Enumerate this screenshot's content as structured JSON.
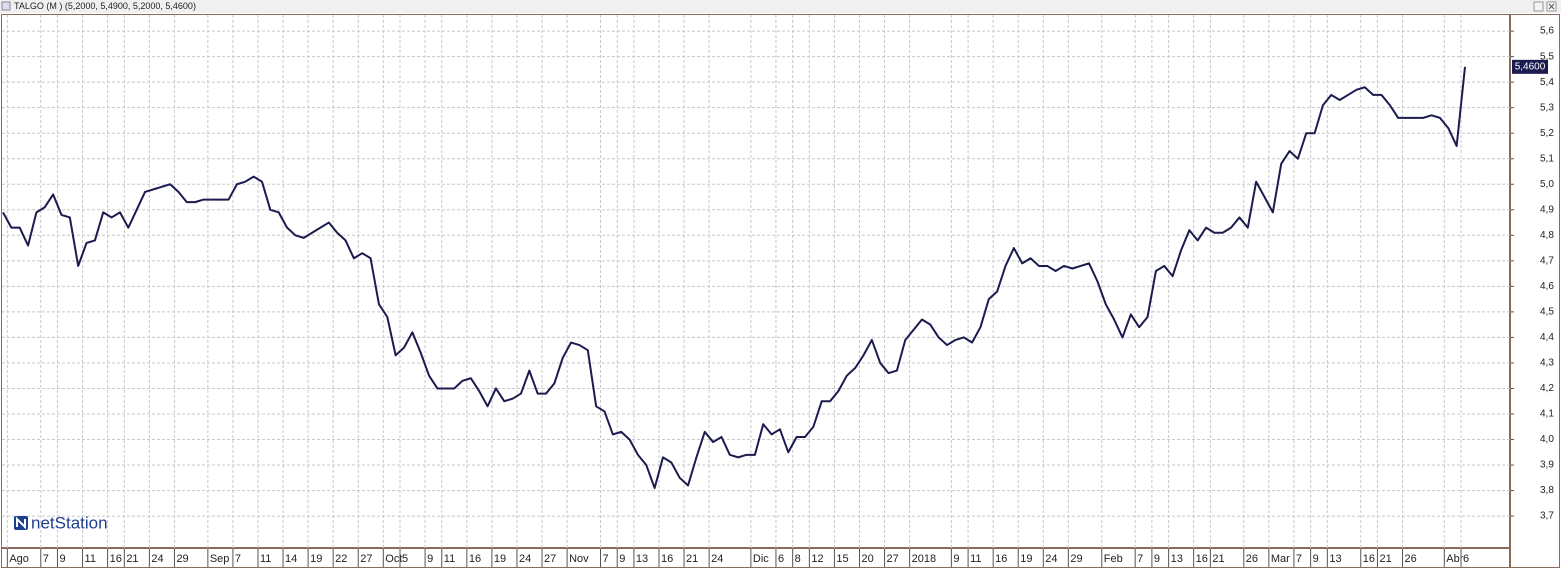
{
  "chart_data": {
    "type": "line",
    "title": "TALGO (M ) (5,2000, 5,4900, 5,2000, 5,4600)",
    "logo": "netStation",
    "categories": [
      null,
      "Ago",
      null,
      null,
      null,
      "7",
      null,
      "9",
      null,
      null,
      "11",
      null,
      null,
      "16",
      null,
      "21",
      null,
      null,
      "24",
      null,
      null,
      "29",
      null,
      null,
      null,
      "Sep",
      null,
      null,
      "7",
      null,
      null,
      "11",
      null,
      null,
      "14",
      null,
      null,
      "19",
      null,
      null,
      "22",
      null,
      null,
      "27",
      null,
      null,
      "Oct",
      null,
      "5",
      null,
      null,
      "9",
      null,
      "11",
      null,
      null,
      "16",
      null,
      null,
      "19",
      null,
      null,
      "24",
      null,
      null,
      "27",
      null,
      null,
      "Nov",
      null,
      null,
      null,
      "7",
      null,
      "9",
      null,
      "13",
      null,
      null,
      "16",
      null,
      null,
      "21",
      null,
      null,
      "24",
      null,
      null,
      null,
      null,
      "Dic",
      null,
      null,
      "6",
      null,
      "8",
      null,
      "12",
      null,
      null,
      "15",
      null,
      null,
      "20",
      null,
      null,
      "27",
      null,
      null,
      "2018",
      null,
      null,
      null,
      null,
      "9",
      null,
      "11",
      null,
      null,
      "16",
      null,
      null,
      "19",
      null,
      null,
      "24",
      null,
      null,
      "29",
      null,
      null,
      null,
      "Feb",
      null,
      null,
      null,
      "7",
      null,
      "9",
      null,
      "13",
      null,
      null,
      "16",
      null,
      "21",
      null,
      null,
      null,
      "26",
      null,
      null,
      "Mar",
      null,
      null,
      "7",
      null,
      "9",
      null,
      "13",
      null,
      null,
      null,
      "16",
      null,
      "21",
      null,
      null,
      "26",
      null,
      null,
      null,
      null,
      "Abr",
      null,
      "6"
    ],
    "series": [
      {
        "color": "#1b1b4f",
        "values": [
          4.89,
          4.83,
          4.83,
          4.76,
          4.89,
          4.91,
          4.96,
          4.88,
          4.87,
          4.68,
          4.77,
          4.78,
          4.89,
          4.87,
          4.89,
          4.83,
          4.9,
          4.97,
          4.98,
          4.99,
          5.0,
          4.97,
          4.93,
          4.93,
          4.94,
          4.94,
          4.94,
          4.94,
          5.0,
          5.01,
          5.03,
          5.01,
          4.9,
          4.89,
          4.83,
          4.8,
          4.79,
          4.81,
          4.83,
          4.85,
          4.81,
          4.78,
          4.71,
          4.73,
          4.71,
          4.53,
          4.48,
          4.33,
          4.36,
          4.42,
          4.34,
          4.25,
          4.2,
          4.2,
          4.2,
          4.23,
          4.24,
          4.19,
          4.13,
          4.2,
          4.15,
          4.16,
          4.18,
          4.27,
          4.18,
          4.18,
          4.22,
          4.32,
          4.38,
          4.37,
          4.35,
          4.13,
          4.11,
          4.02,
          4.03,
          4.0,
          3.94,
          3.9,
          3.81,
          3.93,
          3.91,
          3.85,
          3.82,
          3.93,
          4.03,
          3.99,
          4.01,
          3.94,
          3.93,
          3.94,
          3.94,
          4.06,
          4.02,
          4.04,
          3.95,
          4.01,
          4.01,
          4.05,
          4.15,
          4.15,
          4.19,
          4.25,
          4.28,
          4.33,
          4.39,
          4.3,
          4.26,
          4.27,
          4.39,
          4.43,
          4.47,
          4.45,
          4.4,
          4.37,
          4.39,
          4.4,
          4.38,
          4.44,
          4.55,
          4.58,
          4.68,
          4.75,
          4.69,
          4.71,
          4.68,
          4.68,
          4.66,
          4.68,
          4.67,
          4.68,
          4.69,
          4.62,
          4.53,
          4.47,
          4.4,
          4.49,
          4.44,
          4.48,
          4.66,
          4.68,
          4.64,
          4.74,
          4.82,
          4.78,
          4.83,
          4.81,
          4.81,
          4.83,
          4.87,
          4.83,
          5.01,
          4.95,
          4.89,
          5.08,
          5.13,
          5.1,
          5.2,
          5.2,
          5.31,
          5.35,
          5.33,
          5.35,
          5.37,
          5.38,
          5.35,
          5.35,
          5.31,
          5.26,
          5.26,
          5.26,
          5.26,
          5.27,
          5.26,
          5.22,
          5.15,
          5.46
        ]
      }
    ],
    "last_price": {
      "value": 5.46,
      "label": "5,4600"
    },
    "ylim": [
      3.575,
      5.667
    ],
    "yticks": [
      {
        "value": 3.7,
        "label": "3,7"
      },
      {
        "value": 3.8,
        "label": "3,8"
      },
      {
        "value": 3.9,
        "label": "3,9"
      },
      {
        "value": 4.0,
        "label": "4,0"
      },
      {
        "value": 4.1,
        "label": "4,1"
      },
      {
        "value": 4.2,
        "label": "4,2"
      },
      {
        "value": 4.3,
        "label": "4,3"
      },
      {
        "value": 4.4,
        "label": "4,4"
      },
      {
        "value": 4.5,
        "label": "4,5"
      },
      {
        "value": 4.6,
        "label": "4,6"
      },
      {
        "value": 4.7,
        "label": "4,7"
      },
      {
        "value": 4.8,
        "label": "4,8"
      },
      {
        "value": 4.9,
        "label": "4,9"
      },
      {
        "value": 5.0,
        "label": "5,0"
      },
      {
        "value": 5.1,
        "label": "5,1"
      },
      {
        "value": 5.2,
        "label": "5,2"
      },
      {
        "value": 5.3,
        "label": "5,3"
      },
      {
        "value": 5.4,
        "label": "5,4"
      },
      {
        "value": 5.5,
        "label": "5,5"
      },
      {
        "value": 5.6,
        "label": "5,6"
      }
    ],
    "grid": true
  }
}
